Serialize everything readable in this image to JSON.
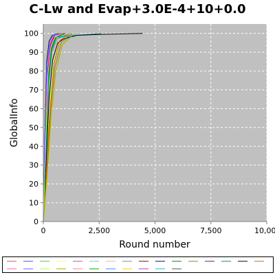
{
  "chart_data": {
    "type": "line",
    "title": "C-Lw and Evap+3.0E-4+10+0.0",
    "xlabel": "Round number",
    "ylabel": "GlobalInfo",
    "xlim": [
      0,
      10000
    ],
    "ylim": [
      0,
      105
    ],
    "xticks": [
      "0",
      "2,500",
      "5,000",
      "7,500",
      "10,00"
    ],
    "yticks": [
      "0",
      "10",
      "20",
      "30",
      "40",
      "50",
      "60",
      "70",
      "80",
      "90",
      "100"
    ],
    "grid": true,
    "plot_background": "#c0c0c0",
    "legend_placement": "bottom",
    "series": [
      {
        "color": "#ff4444",
        "x": [
          0,
          80,
          180,
          300,
          480,
          800
        ],
        "y": [
          0,
          40,
          80,
          95,
          99,
          100
        ]
      },
      {
        "color": "#4444ff",
        "x": [
          0,
          70,
          160,
          280,
          420,
          700
        ],
        "y": [
          0,
          42,
          83,
          96,
          99,
          100
        ]
      },
      {
        "color": "#44cc44",
        "x": [
          0,
          90,
          200,
          330,
          500,
          900
        ],
        "y": [
          0,
          38,
          78,
          93,
          98,
          100
        ]
      },
      {
        "color": "#ffff44",
        "x": [
          0,
          130,
          280,
          450,
          700,
          1100
        ],
        "y": [
          0,
          28,
          62,
          85,
          96,
          100
        ]
      },
      {
        "color": "#cc44cc",
        "x": [
          0,
          85,
          190,
          320,
          490,
          850
        ],
        "y": [
          0,
          40,
          80,
          94,
          99,
          100
        ]
      },
      {
        "color": "#44dddd",
        "x": [
          0,
          100,
          220,
          360,
          560,
          1600
        ],
        "y": [
          0,
          36,
          76,
          92,
          98,
          100
        ]
      },
      {
        "color": "#ffaaaa",
        "x": [
          0,
          75,
          170,
          290,
          450,
          750
        ],
        "y": [
          0,
          41,
          82,
          95,
          99,
          100
        ]
      },
      {
        "color": "#888888",
        "x": [
          0,
          110,
          240,
          380,
          600,
          1200
        ],
        "y": [
          0,
          33,
          72,
          90,
          97,
          100
        ]
      },
      {
        "color": "#880000",
        "x": [
          0,
          95,
          210,
          350,
          540,
          950
        ],
        "y": [
          0,
          37,
          77,
          92,
          98,
          100
        ]
      },
      {
        "color": "#000088",
        "x": [
          0,
          65,
          150,
          260,
          400,
          650
        ],
        "y": [
          0,
          44,
          85,
          96,
          99,
          100
        ]
      },
      {
        "color": "#008800",
        "x": [
          0,
          105,
          230,
          370,
          580,
          1000
        ],
        "y": [
          0,
          35,
          75,
          91,
          98,
          100
        ]
      },
      {
        "color": "#888800",
        "x": [
          0,
          150,
          320,
          520,
          800,
          1300
        ],
        "y": [
          0,
          25,
          58,
          82,
          95,
          100
        ]
      },
      {
        "color": "#880088",
        "x": [
          0,
          88,
          195,
          325,
          500,
          870
        ],
        "y": [
          0,
          39,
          79,
          94,
          99,
          100
        ]
      },
      {
        "color": "#008888",
        "x": [
          0,
          100,
          215,
          355,
          550,
          2600
        ],
        "y": [
          0,
          36,
          76,
          92,
          98,
          100
        ]
      },
      {
        "color": "#000000",
        "x": [
          0,
          120,
          260,
          420,
          650,
          900,
          1200,
          1500,
          2600,
          4450
        ],
        "y": [
          0,
          30,
          66,
          86,
          95,
          97,
          98,
          99,
          99.5,
          100
        ]
      },
      {
        "color": "#cc6600",
        "x": [
          0,
          140,
          300,
          480,
          720,
          1150
        ],
        "y": [
          0,
          27,
          60,
          84,
          96,
          100
        ]
      },
      {
        "color": "#ff66aa",
        "x": [
          0,
          80,
          175,
          295,
          470,
          780
        ],
        "y": [
          0,
          41,
          81,
          95,
          99,
          100
        ]
      },
      {
        "color": "#6666ff",
        "x": [
          0,
          72,
          165,
          285,
          430,
          720
        ],
        "y": [
          0,
          43,
          84,
          96,
          99,
          100
        ]
      },
      {
        "color": "#aaff66",
        "x": [
          0,
          95,
          205,
          340,
          520,
          880
        ],
        "y": [
          0,
          37,
          78,
          93,
          98,
          100
        ]
      },
      {
        "color": "#aaaa00",
        "x": [
          0,
          160,
          340,
          560,
          850,
          1400
        ],
        "y": [
          0,
          23,
          55,
          80,
          94,
          100
        ]
      }
    ],
    "legend_entries": [
      {
        "color": "#ff4444"
      },
      {
        "color": "#4444ff"
      },
      {
        "color": "#44cc44"
      },
      {
        "color": "#ffff44"
      },
      {
        "color": "#cc44cc"
      },
      {
        "color": "#44dddd"
      },
      {
        "color": "#ffaaaa"
      },
      {
        "color": "#888888"
      },
      {
        "color": "#880000"
      },
      {
        "color": "#000088"
      },
      {
        "color": "#008800"
      },
      {
        "color": "#888800"
      },
      {
        "color": "#880088"
      },
      {
        "color": "#008888"
      },
      {
        "color": "#000000"
      },
      {
        "color": "#cc6600"
      },
      {
        "color": "#ff66aa"
      },
      {
        "color": "#6666ff"
      },
      {
        "color": "#aaff66"
      },
      {
        "color": "#aaaa00"
      },
      {
        "color": "#ff8888"
      },
      {
        "color": "#00aa00"
      },
      {
        "color": "#4488ff"
      },
      {
        "color": "#ffcc00"
      },
      {
        "color": "#aa44aa"
      },
      {
        "color": "#22bbbb"
      },
      {
        "color": "#555555"
      }
    ]
  }
}
